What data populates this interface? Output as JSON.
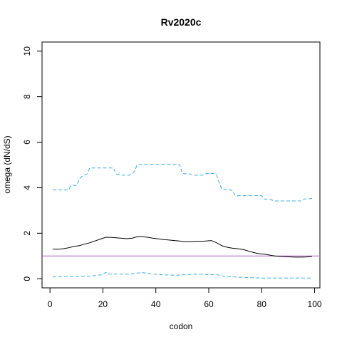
{
  "chart_data": {
    "type": "line",
    "title": "Rv2020c",
    "xlabel": "codon",
    "ylabel": "omega (dN/dS)",
    "xlim": [
      -3,
      102
    ],
    "ylim": [
      -0.4,
      10.4
    ],
    "xticks": [
      0,
      20,
      40,
      60,
      80,
      100
    ],
    "yticks": [
      0,
      2,
      4,
      6,
      8,
      10
    ],
    "grid": false,
    "reference_line": {
      "y": 1,
      "color": "#b05cc0"
    },
    "series": [
      {
        "style": "solid",
        "color": "#000000",
        "x": [
          1,
          3,
          5,
          7,
          9,
          11,
          13,
          15,
          17,
          19,
          21,
          23,
          25,
          27,
          29,
          31,
          33,
          35,
          37,
          39,
          41,
          43,
          45,
          47,
          49,
          51,
          53,
          55,
          57,
          59,
          61,
          63,
          65,
          67,
          69,
          71,
          73,
          75,
          77,
          79,
          81,
          83,
          85,
          87,
          89,
          91,
          93,
          95,
          97,
          99
        ],
        "y": [
          1.3,
          1.3,
          1.32,
          1.36,
          1.42,
          1.45,
          1.52,
          1.58,
          1.66,
          1.74,
          1.82,
          1.82,
          1.8,
          1.78,
          1.76,
          1.78,
          1.85,
          1.85,
          1.82,
          1.78,
          1.75,
          1.72,
          1.7,
          1.68,
          1.66,
          1.63,
          1.63,
          1.64,
          1.64,
          1.66,
          1.68,
          1.58,
          1.45,
          1.38,
          1.34,
          1.32,
          1.28,
          1.22,
          1.15,
          1.1,
          1.08,
          1.04,
          1.0,
          0.98,
          0.97,
          0.96,
          0.95,
          0.95,
          0.96,
          0.98
        ]
      },
      {
        "style": "dashed",
        "color": "#3aaee0",
        "x": [
          1,
          7,
          8,
          10,
          11,
          12,
          14,
          15,
          16,
          19,
          20,
          21,
          23,
          24,
          25,
          26,
          27,
          28,
          30,
          31,
          32,
          33,
          45,
          46,
          49,
          50,
          53,
          54,
          58,
          59,
          62,
          63,
          64,
          65,
          66,
          67,
          69,
          70,
          71,
          77,
          78,
          80,
          81,
          83,
          84,
          85,
          90,
          91,
          95,
          96,
          99
        ],
        "y": [
          3.9,
          3.9,
          4.1,
          4.1,
          4.35,
          4.5,
          4.6,
          4.87,
          4.87,
          4.87,
          4.87,
          4.87,
          4.87,
          4.87,
          4.6,
          4.58,
          4.55,
          4.55,
          4.55,
          4.6,
          4.75,
          5.02,
          5.02,
          5.02,
          5.02,
          4.62,
          4.6,
          4.55,
          4.55,
          4.62,
          4.62,
          4.55,
          4.2,
          3.92,
          3.92,
          3.92,
          3.88,
          3.65,
          3.65,
          3.65,
          3.65,
          3.65,
          3.5,
          3.5,
          3.45,
          3.42,
          3.42,
          3.42,
          3.42,
          3.5,
          3.53
        ]
      },
      {
        "style": "dashed",
        "color": "#3aaee0",
        "x": [
          1,
          5,
          10,
          15,
          18,
          20,
          21,
          22,
          25,
          30,
          33,
          35,
          38,
          42,
          48,
          50,
          55,
          60,
          63,
          66,
          70,
          75,
          80,
          85,
          90,
          95,
          99
        ],
        "y": [
          0.08,
          0.1,
          0.1,
          0.12,
          0.15,
          0.18,
          0.28,
          0.2,
          0.2,
          0.2,
          0.25,
          0.27,
          0.22,
          0.18,
          0.15,
          0.18,
          0.2,
          0.18,
          0.18,
          0.1,
          0.08,
          0.05,
          0.03,
          0.03,
          0.03,
          0.03,
          0.03
        ]
      }
    ]
  }
}
